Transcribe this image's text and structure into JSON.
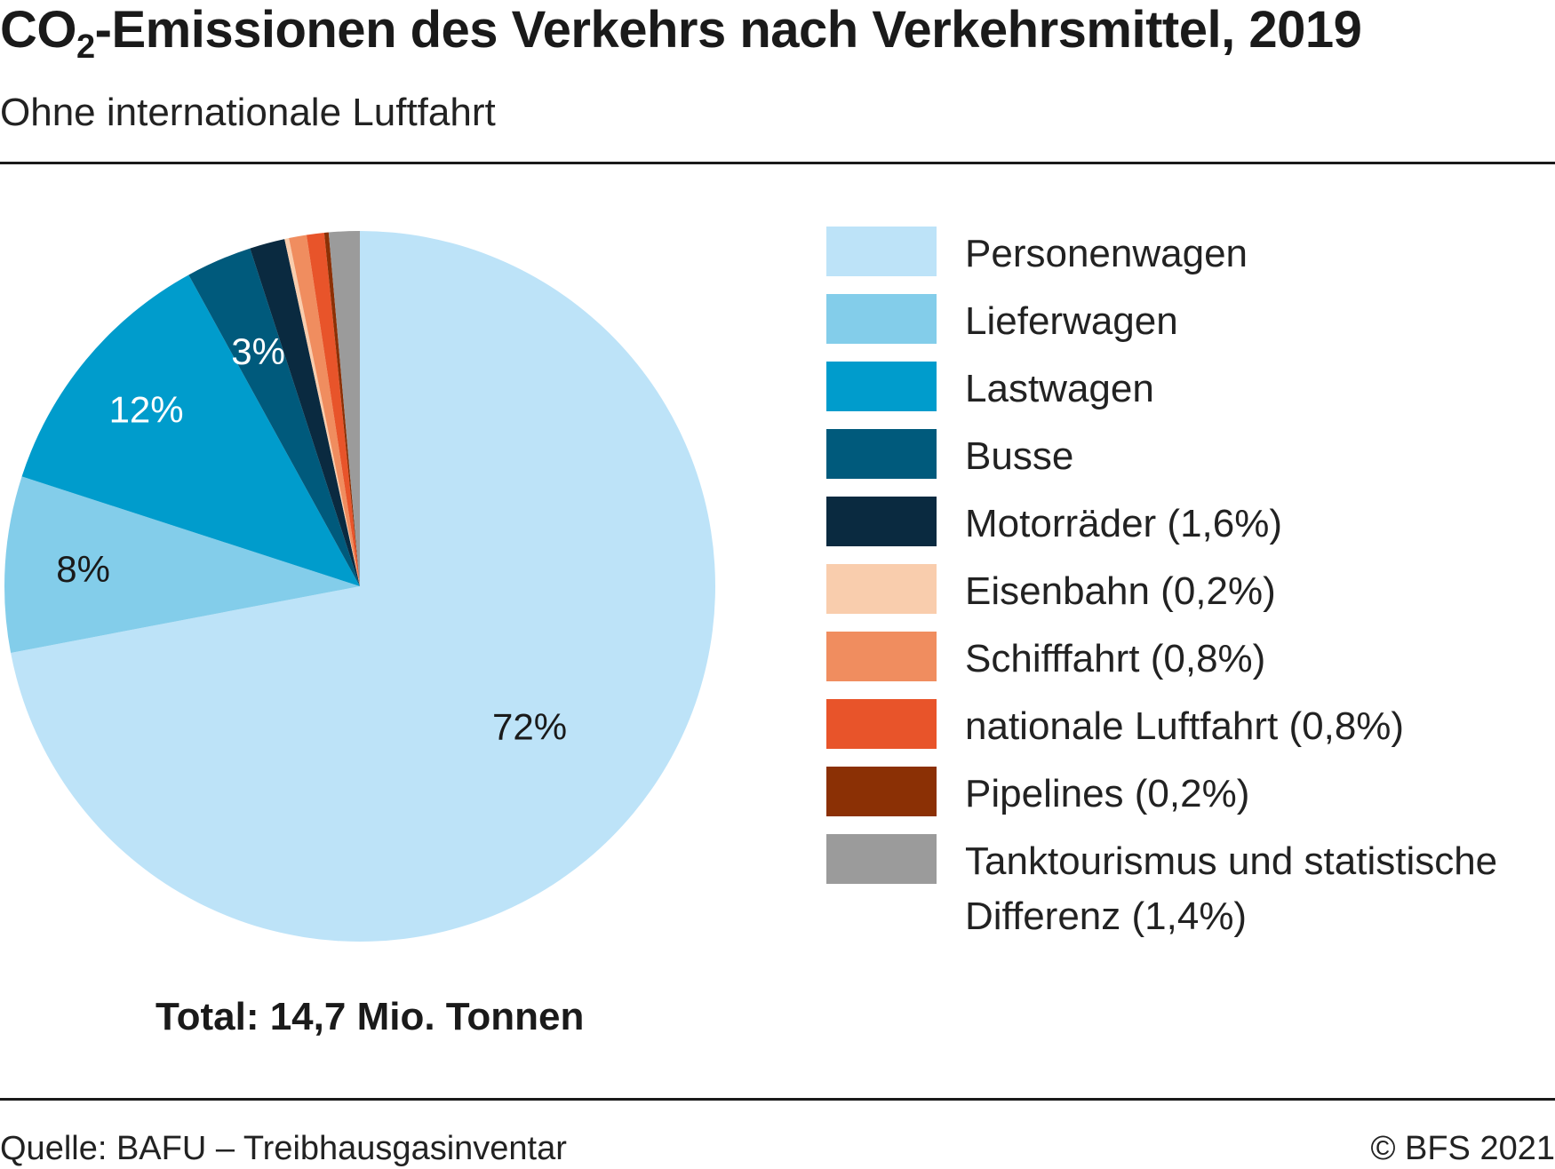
{
  "header": {
    "title_pre": "CO",
    "title_sub": "2",
    "title_post": "-Emissionen des Verkehrs nach Verkehrsmittel, 2019",
    "subtitle": "Ohne internationale Luftfahrt"
  },
  "chart_data": {
    "type": "pie",
    "total_label": "Total: 14,7 Mio. Tonnen",
    "start_angle_deg": 0,
    "direction": "clockwise",
    "slices": [
      {
        "name": "Personenwagen",
        "legend": "Personenwagen",
        "value": 72.0,
        "label": "72%",
        "color": "#bde3f8"
      },
      {
        "name": "Lieferwagen",
        "legend": "Lieferwagen",
        "value": 8.0,
        "label": "8%",
        "color": "#83cdea"
      },
      {
        "name": "Lastwagen",
        "legend": "Lastwagen",
        "value": 12.0,
        "label": "12%",
        "color": "#009ccc"
      },
      {
        "name": "Busse",
        "legend": "Busse",
        "value": 3.0,
        "label": "3%",
        "color": "#005a7c"
      },
      {
        "name": "Motorräder",
        "legend": "Motorräder (1,6%)",
        "value": 1.6,
        "label": "",
        "color": "#0a2a40"
      },
      {
        "name": "Eisenbahn",
        "legend": "Eisenbahn (0,2%)",
        "value": 0.2,
        "label": "",
        "color": "#f9cdad"
      },
      {
        "name": "Schifffahrt",
        "legend": "Schifffahrt (0,8%)",
        "value": 0.8,
        "label": "",
        "color": "#f08d5f"
      },
      {
        "name": "nationale Luftfahrt",
        "legend": "nationale Luftfahrt (0,8%)",
        "value": 0.8,
        "label": "",
        "color": "#e8542a"
      },
      {
        "name": "Pipelines",
        "legend": "Pipelines (0,2%)",
        "value": 0.2,
        "label": "",
        "color": "#8b3005"
      },
      {
        "name": "Tanktourismus und statistische Differenz",
        "legend": "Tanktourismus und statistische Differenz (1,4%)",
        "value": 1.4,
        "label": "",
        "color": "#9b9b9b"
      }
    ]
  },
  "footer": {
    "source": "Quelle: BAFU – Treibhausgasinventar",
    "copyright": "© BFS 2021"
  }
}
